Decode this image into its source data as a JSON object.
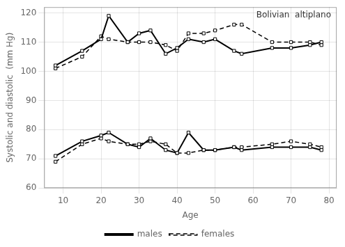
{
  "chart_data": {
    "type": "line",
    "x": [
      8,
      15,
      20,
      22,
      27,
      30,
      33,
      37,
      40,
      43,
      47,
      50,
      55,
      57,
      65,
      70,
      75,
      78
    ],
    "series": [
      {
        "name": "males",
        "color": "black",
        "marker": "square",
        "line_style": "solid",
        "values": [
          102,
          107,
          111,
          119,
          110,
          113,
          114,
          106,
          108,
          111,
          110,
          111,
          107,
          106,
          108,
          108,
          109,
          110
        ]
      },
      {
        "name": "females",
        "color": "black",
        "marker": "square",
        "line_style": "dashed",
        "values": [
          101,
          105,
          112,
          111,
          110,
          110,
          110,
          109,
          107,
          113,
          113,
          114,
          116,
          116,
          110,
          110,
          110,
          109
        ]
      },
      {
        "name": "males",
        "color": "black",
        "marker": "square",
        "line_style": "solid",
        "values": [
          71,
          76,
          78,
          79,
          75,
          74,
          77,
          73,
          72,
          79,
          73,
          73,
          74,
          73,
          74,
          74,
          74,
          73
        ]
      },
      {
        "name": "females",
        "color": "black",
        "marker": "square",
        "line_style": "dashed",
        "values": [
          69,
          75,
          77,
          76,
          75,
          75,
          76,
          75,
          72,
          72,
          73,
          73,
          74,
          74,
          75,
          76,
          75,
          74
        ]
      }
    ],
    "xlabel": "Age",
    "ylabel": "Systolic and diastolic  (mm Hg)",
    "annotation": "Bolivian  altiplano",
    "xlim": [
      5,
      82
    ],
    "xticks": [
      10,
      20,
      30,
      40,
      50,
      60,
      70,
      80
    ],
    "ylim": [
      60,
      122
    ],
    "yticks": [
      60,
      70,
      80,
      90,
      100,
      110,
      120
    ],
    "grid": true,
    "legend": "bottom"
  }
}
